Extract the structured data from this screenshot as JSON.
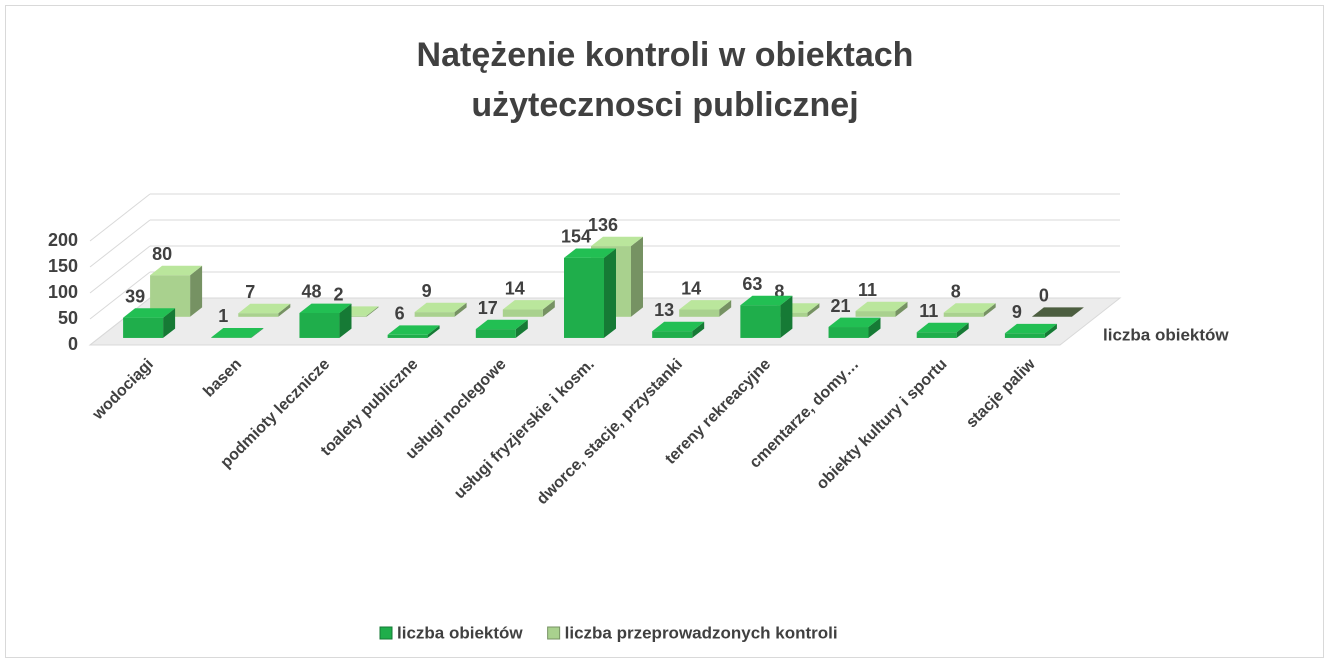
{
  "chart_data": {
    "type": "bar3d",
    "title": [
      "Natężenie kontroli w obiektach",
      "użytecznosci publicznej"
    ],
    "categories": [
      "wodociągi",
      "basen",
      "podmioty lecznicze",
      "toalety publiczne",
      "usługi noclegowe",
      "usługi fryzjerskie i kosm.",
      "dworce, stacje, przystanki",
      "tereny rekreacyjne",
      "cmentarze, domy…",
      "obiekty kultury i sportu",
      "stacje paliw"
    ],
    "series": [
      {
        "name": "liczba obiektów",
        "color": "#1fae4b",
        "values": [
          39,
          1,
          48,
          6,
          17,
          154,
          13,
          63,
          21,
          11,
          9
        ]
      },
      {
        "name": "liczba przeprowadzonych kontroli",
        "color": "#a9d18e",
        "values": [
          80,
          7,
          2,
          9,
          14,
          136,
          14,
          8,
          11,
          8,
          0
        ]
      }
    ],
    "depth_label": "liczba obiektów",
    "ylim": [
      0,
      200
    ],
    "yticks": [
      0,
      50,
      100,
      150,
      200
    ],
    "grid": true
  }
}
